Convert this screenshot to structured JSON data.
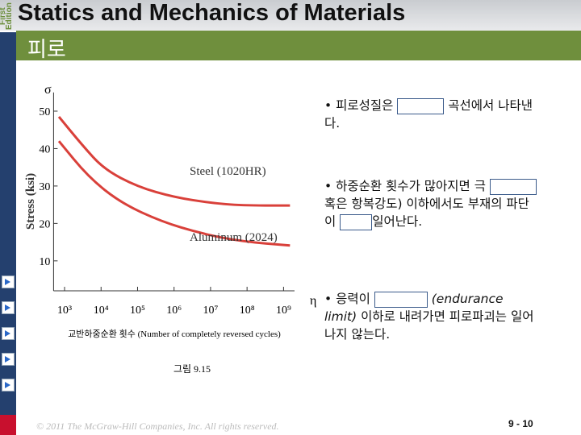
{
  "header": {
    "edition": "First Edition",
    "title": "Statics and Mechanics of Materials",
    "subtitle": "피로"
  },
  "bullets": [
    {
      "parts": [
        "피로성질은",
        "곡선에서 나타낸다."
      ]
    },
    {
      "parts": [
        "하중순환 횟수가 많아지면 극",
        "혹은 항복강도) 이하에서도 부재의 파단이",
        "일어난다."
      ]
    },
    {
      "parts": [
        "응력이",
        "(endurance limit)",
        "이하로 내려가면 피로파괴는 일어나지 않는다."
      ]
    }
  ],
  "caption": "그림 9.15",
  "footer": {
    "copyright": "© 2011 The McGraw-Hill Companies, Inc. All rights reserved.",
    "page": "9 - 10"
  },
  "chart_data": {
    "type": "line",
    "y_symbol": "σ",
    "x_symbol": "η",
    "y_label": "Stress (ksi)",
    "x_label": "교반하중순환 횟수 (Number of completely reversed cycles)",
    "x_scale": "log",
    "xlim": [
      500,
      2000000000
    ],
    "ylim": [
      2,
      55
    ],
    "xticks": [
      {
        "value": 1000,
        "label": "10³"
      },
      {
        "value": 10000,
        "label": "10⁴"
      },
      {
        "value": 100000,
        "label": "10⁵"
      },
      {
        "value": 1000000,
        "label": "10⁶"
      },
      {
        "value": 10000000,
        "label": "10⁷"
      },
      {
        "value": 100000000,
        "label": "10⁸"
      },
      {
        "value": 1000000000,
        "label": "10⁹"
      }
    ],
    "yticks": [
      10,
      20,
      30,
      40,
      50
    ],
    "series": [
      {
        "name": "Steel (1020HR)",
        "color": "#d9403a",
        "x": [
          700,
          3000,
          12000,
          100000,
          1000000,
          10000000,
          70000000,
          1500000000
        ],
        "values": [
          48.5,
          41,
          34.5,
          29.8,
          27,
          25.5,
          24.8,
          24.8
        ]
      },
      {
        "name": "Aluminum (2024)",
        "color": "#d9403a",
        "x": [
          700,
          4500,
          35000,
          450000,
          5600000,
          70000000,
          1500000000
        ],
        "values": [
          42,
          32.4,
          25.5,
          20.5,
          17.3,
          15.2,
          14.1
        ]
      }
    ]
  }
}
